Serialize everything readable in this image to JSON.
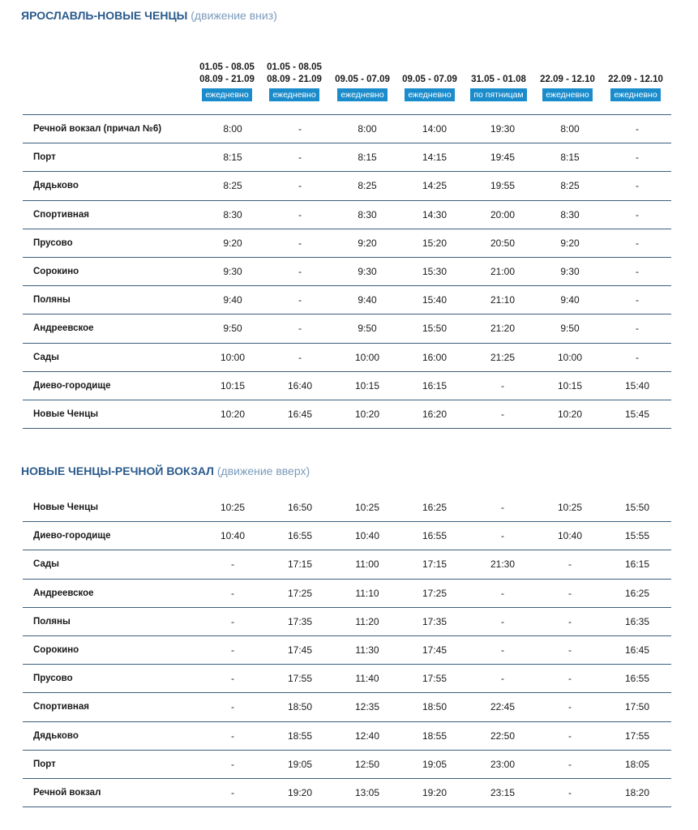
{
  "section1": {
    "title": "ЯРОСЛАВЛЬ-НОВЫЕ ЧЕНЦЫ",
    "subtitle": "(движение вниз)"
  },
  "section2": {
    "title": "НОВЫЕ ЧЕНЦЫ-РЕЧНОЙ ВОКЗАЛ",
    "subtitle": "(движение вверх)"
  },
  "columns": [
    {
      "line1": "01.05 - 08.05",
      "line2": "08.09 - 21.09",
      "badge": "ежедневно"
    },
    {
      "line1": "01.05 - 08.05",
      "line2": "08.09 - 21.09",
      "badge": "ежедневно"
    },
    {
      "line1": "09.05 - 07.09",
      "line2": "",
      "badge": "ежедневно"
    },
    {
      "line1": "09.05 - 07.09",
      "line2": "",
      "badge": "ежедневно"
    },
    {
      "line1": "31.05 - 01.08",
      "line2": "",
      "badge": "по пятницам"
    },
    {
      "line1": "22.09 - 12.10",
      "line2": "",
      "badge": "ежедневно"
    },
    {
      "line1": "22.09 - 12.10",
      "line2": "",
      "badge": "ежедневно"
    }
  ],
  "down_rows": [
    {
      "stop": "Речной вокзал (причал №6)",
      "times": [
        "8:00",
        "-",
        "8:00",
        "14:00",
        "19:30",
        "8:00",
        "-"
      ]
    },
    {
      "stop": "Порт",
      "times": [
        "8:15",
        "-",
        "8:15",
        "14:15",
        "19:45",
        "8:15",
        "-"
      ]
    },
    {
      "stop": "Дядьково",
      "times": [
        "8:25",
        "-",
        "8:25",
        "14:25",
        "19:55",
        "8:25",
        "-"
      ]
    },
    {
      "stop": "Спортивная",
      "times": [
        "8:30",
        "-",
        "8:30",
        "14:30",
        "20:00",
        "8:30",
        "-"
      ]
    },
    {
      "stop": "Прусово",
      "times": [
        "9:20",
        "-",
        "9:20",
        "15:20",
        "20:50",
        "9:20",
        "-"
      ]
    },
    {
      "stop": "Сорокино",
      "times": [
        "9:30",
        "-",
        "9:30",
        "15:30",
        "21:00",
        "9:30",
        "-"
      ]
    },
    {
      "stop": "Поляны",
      "times": [
        "9:40",
        "-",
        "9:40",
        "15:40",
        "21:10",
        "9:40",
        "-"
      ]
    },
    {
      "stop": "Андреевское",
      "times": [
        "9:50",
        "-",
        "9:50",
        "15:50",
        "21:20",
        "9:50",
        "-"
      ]
    },
    {
      "stop": "Сады",
      "times": [
        "10:00",
        "-",
        "10:00",
        "16:00",
        "21:25",
        "10:00",
        "-"
      ]
    },
    {
      "stop": "Диево-городище",
      "times": [
        "10:15",
        "16:40",
        "10:15",
        "16:15",
        "-",
        "10:15",
        "15:40"
      ]
    },
    {
      "stop": "Новые Ченцы",
      "times": [
        "10:20",
        "16:45",
        "10:20",
        "16:20",
        "-",
        "10:20",
        "15:45"
      ]
    }
  ],
  "up_rows": [
    {
      "stop": "Новые Ченцы",
      "times": [
        "10:25",
        "16:50",
        "10:25",
        "16:25",
        "-",
        "10:25",
        "15:50"
      ]
    },
    {
      "stop": "Диево-городище",
      "times": [
        "10:40",
        "16:55",
        "10:40",
        "16:55",
        "-",
        "10:40",
        "15:55"
      ]
    },
    {
      "stop": "Сады",
      "times": [
        "-",
        "17:15",
        "11:00",
        "17:15",
        "21:30",
        "-",
        "16:15"
      ]
    },
    {
      "stop": "Андреевское",
      "times": [
        "-",
        "17:25",
        "11:10",
        "17:25",
        "-",
        "-",
        "16:25"
      ]
    },
    {
      "stop": "Поляны",
      "times": [
        "-",
        "17:35",
        "11:20",
        "17:35",
        "-",
        "-",
        "16:35"
      ]
    },
    {
      "stop": "Сорокино",
      "times": [
        "-",
        "17:45",
        "11:30",
        "17:45",
        "-",
        "-",
        "16:45"
      ]
    },
    {
      "stop": "Прусово",
      "times": [
        "-",
        "17:55",
        "11:40",
        "17:55",
        "-",
        "-",
        "16:55"
      ]
    },
    {
      "stop": "Спортивная",
      "times": [
        "-",
        "18:50",
        "12:35",
        "18:50",
        "22:45",
        "-",
        "17:50"
      ]
    },
    {
      "stop": "Дядьково",
      "times": [
        "-",
        "18:55",
        "12:40",
        "18:55",
        "22:50",
        "-",
        "17:55"
      ]
    },
    {
      "stop": "Порт",
      "times": [
        "-",
        "19:05",
        "12:50",
        "19:05",
        "23:00",
        "-",
        "18:05"
      ]
    },
    {
      "stop": "Речной вокзал",
      "times": [
        "-",
        "19:20",
        "13:05",
        "19:20",
        "23:15",
        "-",
        "18:20"
      ]
    }
  ]
}
